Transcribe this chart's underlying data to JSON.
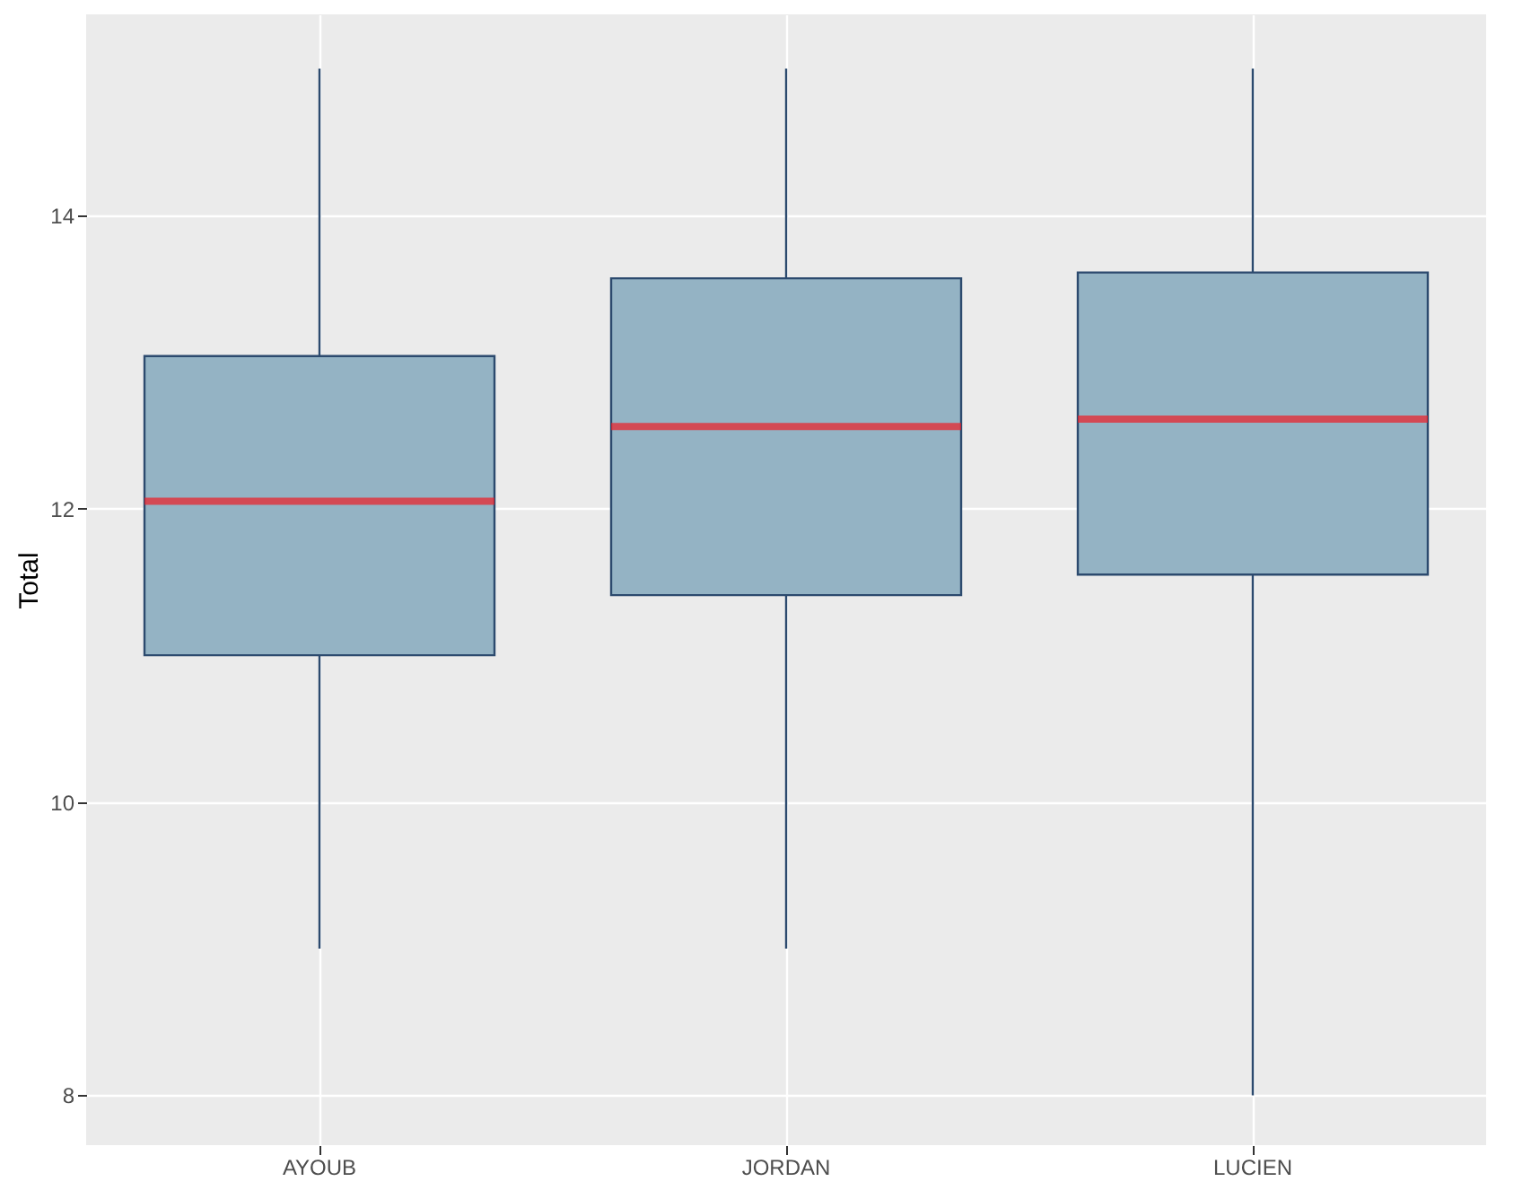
{
  "chart_data": {
    "type": "box",
    "ylabel": "Total",
    "categories": [
      "AYOUB",
      "JORDAN",
      "LUCIEN"
    ],
    "boxes": [
      {
        "low": 9,
        "q1": 11.0,
        "median": 12.05,
        "q3": 13.04,
        "high": 15
      },
      {
        "low": 9,
        "q1": 11.41,
        "median": 12.56,
        "q3": 13.57,
        "high": 15
      },
      {
        "low": 8,
        "q1": 11.55,
        "median": 12.61,
        "q3": 13.61,
        "high": 15
      }
    ],
    "ylim": [
      7.66,
      15.37
    ],
    "yticks": [
      8,
      10,
      12,
      14
    ],
    "grid": true
  }
}
